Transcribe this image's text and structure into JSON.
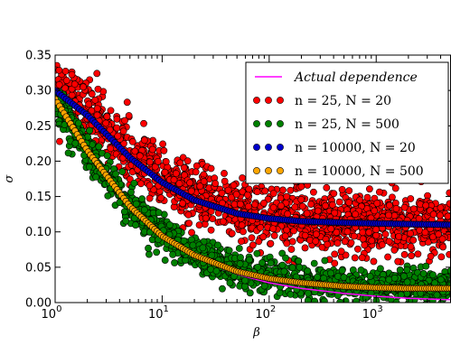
{
  "chart_data": {
    "type": "scatter",
    "title": "",
    "xlabel": "β",
    "ylabel": "σ",
    "xscale": "log",
    "xlim": [
      1,
      5000
    ],
    "ylim": [
      0.0,
      0.35
    ],
    "grid": false,
    "legend_position": "top-right",
    "x_ticks": [
      {
        "value": 1,
        "label": "10",
        "exp": "0"
      },
      {
        "value": 10,
        "label": "10",
        "exp": "1"
      },
      {
        "value": 100,
        "label": "10",
        "exp": "2"
      },
      {
        "value": 1000,
        "label": "10",
        "exp": "3"
      }
    ],
    "y_ticks": [
      0.0,
      0.05,
      0.1,
      0.15,
      0.2,
      0.25,
      0.3,
      0.35
    ],
    "y_tick_labels": [
      "0.00",
      "0.05",
      "0.10",
      "0.15",
      "0.20",
      "0.25",
      "0.30",
      "0.35"
    ],
    "series": [
      {
        "name": "Actual dependence",
        "kind": "line",
        "color": "#ff00ff",
        "x": [
          1,
          2,
          5,
          10,
          20,
          50,
          100,
          200,
          500,
          1000,
          2000,
          5000
        ],
        "values": [
          0.288,
          0.215,
          0.135,
          0.092,
          0.064,
          0.04,
          0.028,
          0.02,
          0.013,
          0.009,
          0.006,
          0.004
        ]
      },
      {
        "name": "n = 25, N = 20",
        "kind": "scatter",
        "color": "#ff0000",
        "spread": 0.022,
        "x": [
          1,
          2,
          5,
          10,
          20,
          50,
          100,
          200,
          500,
          1000,
          2000,
          5000
        ],
        "values": [
          0.31,
          0.27,
          0.21,
          0.175,
          0.15,
          0.13,
          0.122,
          0.117,
          0.114,
          0.112,
          0.112,
          0.111
        ]
      },
      {
        "name": "n = 25, N = 500",
        "kind": "scatter",
        "color": "#008000",
        "spread": 0.014,
        "x": [
          1,
          2,
          5,
          10,
          20,
          50,
          100,
          200,
          500,
          1000,
          2000,
          5000
        ],
        "values": [
          0.288,
          0.215,
          0.137,
          0.096,
          0.07,
          0.047,
          0.037,
          0.03,
          0.026,
          0.024,
          0.023,
          0.022
        ]
      },
      {
        "name": "n = 10000, N = 20",
        "kind": "scatter",
        "color": "#0000cc",
        "spread": 0.0,
        "x": [
          1,
          2,
          5,
          10,
          20,
          50,
          100,
          200,
          500,
          1000,
          2000,
          5000
        ],
        "values": [
          0.3,
          0.265,
          0.205,
          0.17,
          0.145,
          0.126,
          0.119,
          0.115,
          0.113,
          0.112,
          0.111,
          0.11
        ]
      },
      {
        "name": "n = 10000, N = 500",
        "kind": "scatter",
        "color": "#ffa500",
        "spread": 0.0,
        "x": [
          1,
          2,
          5,
          10,
          20,
          50,
          100,
          200,
          500,
          1000,
          2000,
          5000
        ],
        "values": [
          0.288,
          0.215,
          0.136,
          0.094,
          0.067,
          0.044,
          0.034,
          0.028,
          0.023,
          0.021,
          0.02,
          0.02
        ]
      }
    ]
  }
}
